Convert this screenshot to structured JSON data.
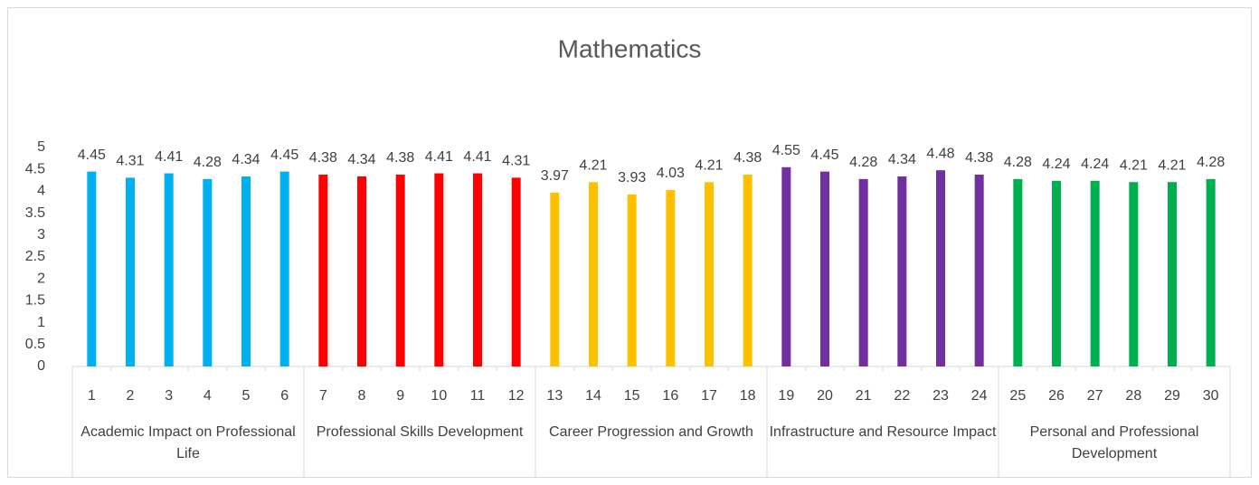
{
  "chart_data": {
    "type": "bar",
    "title": "Mathematics",
    "groups": [
      {
        "name": "Academic Impact on Professional Life",
        "color": "#00b0f0",
        "categories": [
          "1",
          "2",
          "3",
          "4",
          "5",
          "6"
        ],
        "values": [
          4.45,
          4.31,
          4.41,
          4.28,
          4.34,
          4.45
        ]
      },
      {
        "name": "Professional Skills Development",
        "color": "#ff0000",
        "categories": [
          "7",
          "8",
          "9",
          "10",
          "11",
          "12"
        ],
        "values": [
          4.38,
          4.34,
          4.38,
          4.41,
          4.41,
          4.31
        ]
      },
      {
        "name": "Career Progression and Growth",
        "color": "#ffc000",
        "categories": [
          "13",
          "14",
          "15",
          "16",
          "17",
          "18"
        ],
        "values": [
          3.97,
          4.21,
          3.93,
          4.03,
          4.21,
          4.38
        ]
      },
      {
        "name": "Infrastructure and Resource Impact",
        "color": "#7030a0",
        "categories": [
          "19",
          "20",
          "21",
          "22",
          "23",
          "24"
        ],
        "values": [
          4.55,
          4.45,
          4.28,
          4.34,
          4.48,
          4.38
        ]
      },
      {
        "name": "Personal and Professional Development",
        "color": "#00b050",
        "categories": [
          "25",
          "26",
          "27",
          "28",
          "29",
          "30"
        ],
        "values": [
          4.28,
          4.24,
          4.24,
          4.21,
          4.21,
          4.28
        ]
      }
    ],
    "ylim": [
      0,
      5
    ],
    "yticks": [
      0,
      0.5,
      1,
      1.5,
      2,
      2.5,
      3,
      3.5,
      4,
      4.5,
      5
    ],
    "grid": false
  }
}
